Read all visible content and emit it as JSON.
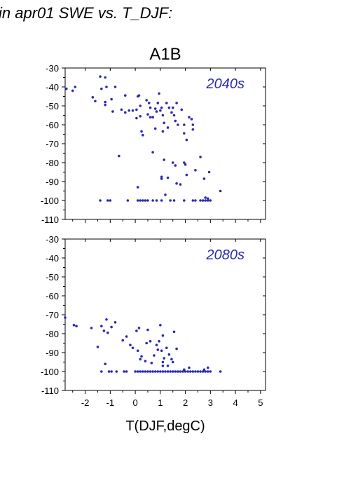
{
  "header_text": "in apr01 SWE vs. T_DJF:",
  "colors": {
    "points": "#2b2bb0",
    "label": "#2b2bb0",
    "axis": "#000000"
  },
  "chart_data": [
    {
      "type": "scatter",
      "title": "A1B",
      "panel_label": "2040s",
      "xlabel": "",
      "ylabel": "",
      "xlim": [
        -2.8,
        5.2
      ],
      "ylim": [
        -110,
        -30
      ],
      "grid": false,
      "xticks": [
        -2,
        -1,
        0,
        1,
        2,
        3,
        4,
        5
      ],
      "yticks": [
        -110,
        -100,
        -90,
        -80,
        -70,
        -60,
        -50,
        -40,
        -30
      ],
      "points": [
        [
          -2.75,
          -41
        ],
        [
          -2.5,
          -42
        ],
        [
          -2.4,
          -40
        ],
        [
          -1.7,
          -45.5
        ],
        [
          -1.6,
          -47.5
        ],
        [
          -1.4,
          -34.5
        ],
        [
          -1.2,
          -35
        ],
        [
          -1.35,
          -41
        ],
        [
          -1.15,
          -40
        ],
        [
          -1.2,
          -48
        ],
        [
          -1.2,
          -49.5
        ],
        [
          -0.95,
          -46.5
        ],
        [
          -0.9,
          -53
        ],
        [
          -0.8,
          -40
        ],
        [
          -0.55,
          -52
        ],
        [
          -0.4,
          -53.5
        ],
        [
          -0.4,
          -44.5
        ],
        [
          -0.25,
          -52.5
        ],
        [
          -0.1,
          -52.5
        ],
        [
          0.05,
          -52
        ],
        [
          0.1,
          -45
        ],
        [
          0.15,
          -44.5
        ],
        [
          0.2,
          -50
        ],
        [
          0.2,
          -55.5
        ],
        [
          0.25,
          -63.5
        ],
        [
          0.3,
          -65.5
        ],
        [
          0.45,
          -47
        ],
        [
          0.5,
          -54.5
        ],
        [
          0.55,
          -48.5
        ],
        [
          0.6,
          -51
        ],
        [
          0.7,
          -56
        ],
        [
          0.8,
          -51.5
        ],
        [
          0.85,
          -53
        ],
        [
          0.9,
          -48.5
        ],
        [
          0.95,
          -43.5
        ],
        [
          1.0,
          -52.5
        ],
        [
          1.05,
          -51
        ],
        [
          1.1,
          -55
        ],
        [
          1.1,
          -63.5
        ],
        [
          1.15,
          -59
        ],
        [
          1.25,
          -48.5
        ],
        [
          1.3,
          -61.5
        ],
        [
          1.35,
          -51
        ],
        [
          1.45,
          -53.5
        ],
        [
          1.5,
          -51
        ],
        [
          1.55,
          -55
        ],
        [
          1.6,
          -58
        ],
        [
          1.65,
          -48.5
        ],
        [
          1.7,
          -60
        ],
        [
          1.85,
          -52
        ],
        [
          1.95,
          -60
        ],
        [
          1.95,
          -64.5
        ],
        [
          2.05,
          -68
        ],
        [
          2.15,
          -56
        ],
        [
          2.25,
          -57
        ],
        [
          2.3,
          -60
        ],
        [
          2.3,
          -62.5
        ],
        [
          0.05,
          -56.5
        ],
        [
          0.6,
          -56
        ],
        [
          0.8,
          -62
        ],
        [
          -0.65,
          -76.5
        ],
        [
          0.7,
          -74.5
        ],
        [
          1.15,
          -78.5
        ],
        [
          1.5,
          -80
        ],
        [
          1.6,
          -81.5
        ],
        [
          1.95,
          -80
        ],
        [
          2.0,
          -81
        ],
        [
          2.05,
          -86.5
        ],
        [
          2.4,
          -84
        ],
        [
          2.6,
          -77
        ],
        [
          2.75,
          -88.5
        ],
        [
          2.95,
          -85
        ],
        [
          1.05,
          -87.5
        ],
        [
          1.05,
          -88.5
        ],
        [
          1.3,
          -88
        ],
        [
          1.8,
          -91.5
        ],
        [
          1.65,
          -91
        ],
        [
          3.4,
          -95
        ],
        [
          0.1,
          -93
        ],
        [
          1.2,
          -97
        ],
        [
          2.8,
          -98.5
        ],
        [
          2.9,
          -99
        ],
        [
          -1.4,
          -100
        ],
        [
          -1.1,
          -100
        ],
        [
          -1.0,
          -100
        ],
        [
          -0.3,
          -100
        ],
        [
          0.1,
          -100
        ],
        [
          0.2,
          -100
        ],
        [
          0.3,
          -100
        ],
        [
          0.4,
          -100
        ],
        [
          0.5,
          -100
        ],
        [
          0.7,
          -100
        ],
        [
          0.85,
          -100
        ],
        [
          1.05,
          -100
        ],
        [
          1.4,
          -100
        ],
        [
          1.55,
          -100
        ],
        [
          1.95,
          -100
        ],
        [
          2.3,
          -100
        ],
        [
          2.4,
          -100
        ],
        [
          2.6,
          -100
        ],
        [
          2.7,
          -100
        ],
        [
          2.8,
          -100
        ],
        [
          2.9,
          -100
        ],
        [
          3.0,
          -100
        ]
      ]
    },
    {
      "type": "scatter",
      "title": "",
      "panel_label": "2080s",
      "xlabel": "T(DJF,degC)",
      "ylabel": "",
      "xlim": [
        -2.8,
        5.2
      ],
      "ylim": [
        -110,
        -30
      ],
      "grid": false,
      "xticks": [
        -2,
        -1,
        0,
        1,
        2,
        3,
        4,
        5
      ],
      "yticks": [
        -110,
        -100,
        -90,
        -80,
        -70,
        -60,
        -50,
        -40,
        -30
      ],
      "xticklabels": [
        "-2",
        "-1",
        "0",
        "1",
        "2",
        "3",
        "4",
        "5"
      ],
      "points": [
        [
          -2.8,
          -71.5
        ],
        [
          -2.45,
          -75.5
        ],
        [
          -2.35,
          -76
        ],
        [
          -1.75,
          -77
        ],
        [
          -1.5,
          -87
        ],
        [
          -1.35,
          -76
        ],
        [
          -1.25,
          -78.5
        ],
        [
          -1.15,
          -72.5
        ],
        [
          -1.1,
          -79.5
        ],
        [
          -0.95,
          -76.5
        ],
        [
          -0.8,
          -74
        ],
        [
          -0.5,
          -83.5
        ],
        [
          -0.35,
          -81.5
        ],
        [
          -0.2,
          -86
        ],
        [
          -0.1,
          -87.5
        ],
        [
          0.05,
          -78.5
        ],
        [
          0.15,
          -77
        ],
        [
          0.1,
          -89
        ],
        [
          0.2,
          -93.5
        ],
        [
          0.25,
          -92
        ],
        [
          0.45,
          -85
        ],
        [
          0.5,
          -78
        ],
        [
          0.6,
          -84
        ],
        [
          0.65,
          -95.5
        ],
        [
          0.75,
          -91.5
        ],
        [
          0.85,
          -86
        ],
        [
          0.9,
          -88.5
        ],
        [
          0.95,
          -84
        ],
        [
          1.0,
          -75.5
        ],
        [
          1.05,
          -89
        ],
        [
          1.1,
          -81
        ],
        [
          1.15,
          -93
        ],
        [
          1.25,
          -87.5
        ],
        [
          1.3,
          -97
        ],
        [
          1.35,
          -91
        ],
        [
          1.45,
          -93.5
        ],
        [
          1.5,
          -95
        ],
        [
          1.55,
          -79
        ],
        [
          1.65,
          -88
        ],
        [
          1.1,
          -95
        ],
        [
          1.1,
          -97
        ],
        [
          -1.2,
          -96
        ],
        [
          0.4,
          -94.5
        ],
        [
          -1.35,
          -100
        ],
        [
          -1.05,
          -100
        ],
        [
          -0.95,
          -100
        ],
        [
          -0.75,
          -100
        ],
        [
          -0.45,
          -100
        ],
        [
          -0.35,
          -100
        ],
        [
          0.0,
          -100
        ],
        [
          0.1,
          -100
        ],
        [
          0.2,
          -100
        ],
        [
          0.3,
          -100
        ],
        [
          0.4,
          -100
        ],
        [
          0.5,
          -100
        ],
        [
          0.6,
          -100
        ],
        [
          0.7,
          -100
        ],
        [
          0.8,
          -100
        ],
        [
          0.9,
          -100
        ],
        [
          1.0,
          -100
        ],
        [
          1.1,
          -100
        ],
        [
          1.2,
          -100
        ],
        [
          1.3,
          -100
        ],
        [
          1.4,
          -100
        ],
        [
          1.5,
          -100
        ],
        [
          1.6,
          -100
        ],
        [
          1.7,
          -100
        ],
        [
          1.8,
          -100
        ],
        [
          1.9,
          -100
        ],
        [
          2.0,
          -100
        ],
        [
          2.1,
          -100
        ],
        [
          2.2,
          -100
        ],
        [
          2.3,
          -100
        ],
        [
          2.4,
          -100
        ],
        [
          2.5,
          -100
        ],
        [
          2.6,
          -100
        ],
        [
          2.7,
          -100
        ],
        [
          2.8,
          -100
        ],
        [
          2.9,
          -100
        ],
        [
          3.0,
          -100
        ],
        [
          3.4,
          -100
        ],
        [
          2.15,
          -98
        ],
        [
          1.95,
          -99
        ],
        [
          2.75,
          -99
        ],
        [
          2.9,
          -98
        ]
      ]
    }
  ]
}
